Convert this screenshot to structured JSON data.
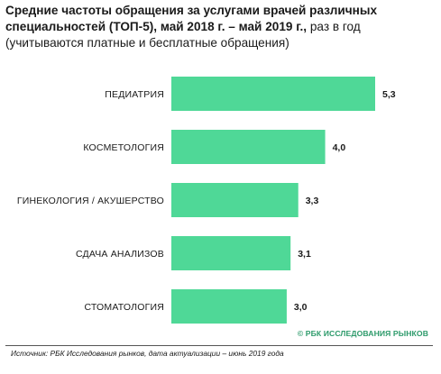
{
  "title": {
    "bold": "Средние частоты обращения за услугами врачей различных специальностей (ТОП-5), май 2018 г. – май 2019 г.,",
    "normal": " раз в год (учитываются платные и бесплатные обращения)"
  },
  "watermark": "© РБК ИССЛЕДОВАНИЯ РЫНКОВ",
  "source": "Источник: РБК Исследования рынков, дата актуализации – июнь 2019 года",
  "colors": {
    "bar": "#4fd897",
    "watermark": "#2c9a6a"
  },
  "chart_data": {
    "type": "bar",
    "orientation": "horizontal",
    "categories": [
      "ПЕДИАТРИЯ",
      "КОСМЕТОЛОГИЯ",
      "ГИНЕКОЛОГИЯ / АКУШЕРСТВО",
      "СДАЧА АНАЛИЗОВ",
      "СТОМАТОЛОГИЯ"
    ],
    "values": [
      5.3,
      4.0,
      3.3,
      3.1,
      3.0
    ],
    "value_labels": [
      "5,3",
      "4,0",
      "3,3",
      "3,1",
      "3,0"
    ],
    "grid": false,
    "xlim": [
      0,
      5.3
    ]
  }
}
